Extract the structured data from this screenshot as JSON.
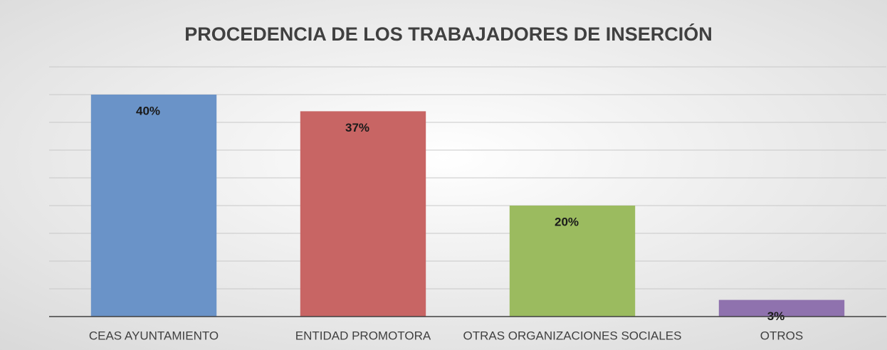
{
  "chart_data": {
    "type": "bar",
    "title": "PROCEDENCIA DE LOS TRABAJADORES DE INSERCIÓN",
    "categories": [
      "CEAS AYUNTAMIENTO",
      "ENTIDAD PROMOTORA",
      "OTRAS ORGANIZACIONES SOCIALES",
      "OTROS"
    ],
    "values": [
      40,
      37,
      20,
      3
    ],
    "value_labels": [
      "40%",
      "37%",
      "20%",
      "3%"
    ],
    "colors": [
      "#6a93c8",
      "#c86564",
      "#9bbb5f",
      "#8f72ae"
    ],
    "ylim": [
      0,
      45
    ],
    "yticks": [
      0,
      5,
      10,
      15,
      20,
      25,
      30,
      35,
      40,
      45
    ],
    "grid": true
  }
}
